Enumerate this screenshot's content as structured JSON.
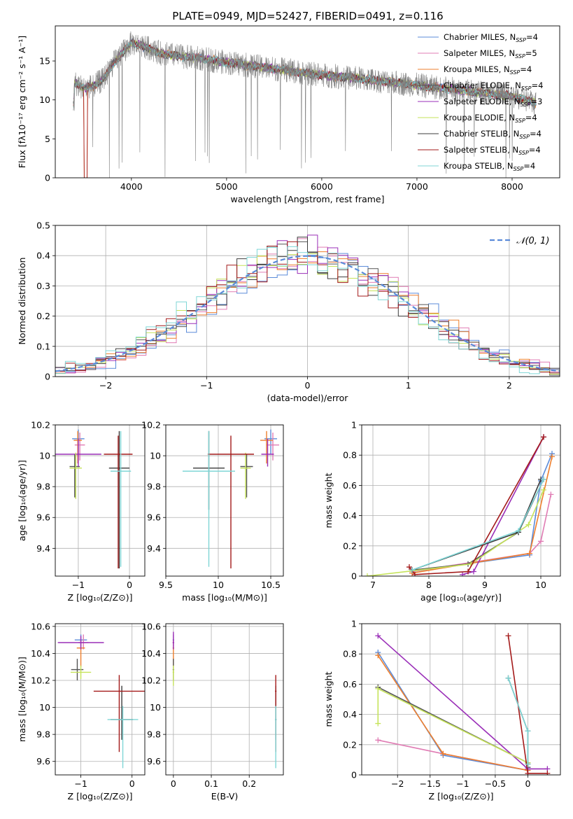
{
  "figure_title": "PLATE=0949, MJD=52427, FIBERID=0491, z=0.116",
  "colors": {
    "c1": "#5b8bd9",
    "c2": "#e07cb4",
    "c3": "#ee7f2d",
    "c4": "#555555",
    "c5": "#9a2fb8",
    "c6": "#c6e35a",
    "c7": "#3c3c3c",
    "c8": "#a31a1a",
    "c9": "#7fd6d6",
    "data": "#808080",
    "normal": "#5b8bd9",
    "grid": "#b0b0b0"
  },
  "legend": [
    {
      "label": "Chabrier MILES, N",
      "sub": "SSP",
      "suffix": "=4",
      "color": "#5b8bd9"
    },
    {
      "label": "Salpeter MILES, N",
      "sub": "SSP",
      "suffix": "=5",
      "color": "#e07cb4"
    },
    {
      "label": "Kroupa MILES, N",
      "sub": "SSP",
      "suffix": "=4",
      "color": "#ee7f2d"
    },
    {
      "label": "Chabrier ELODIE, N",
      "sub": "SSP",
      "suffix": "=4",
      "color": "#555555"
    },
    {
      "label": "Salpeter ELODIE, N",
      "sub": "SSP",
      "suffix": "=3",
      "color": "#9a2fb8"
    },
    {
      "label": "Kroupa ELODIE, N",
      "sub": "SSP",
      "suffix": "=4",
      "color": "#c6e35a"
    },
    {
      "label": "Chabrier STELIB, N",
      "sub": "SSP",
      "suffix": "=4",
      "color": "#3c3c3c"
    },
    {
      "label": "Salpeter STELIB, N",
      "sub": "SSP",
      "suffix": "=4",
      "color": "#a31a1a"
    },
    {
      "label": "Kroupa STELIB, N",
      "sub": "SSP",
      "suffix": "=4",
      "color": "#7fd6d6"
    }
  ],
  "chart_data": [
    {
      "id": "spectrum",
      "type": "line",
      "xlabel": "wavelength [Angstrom, rest frame]",
      "ylabel": "Flux [fλ10⁻¹⁷ erg cm⁻² s⁻¹ A⁻¹]",
      "xlim": [
        3200,
        8500
      ],
      "ylim": [
        0,
        19.5
      ],
      "xticks": [
        4000,
        5000,
        6000,
        7000,
        8000
      ],
      "yticks": [
        0,
        5,
        10,
        15
      ],
      "continuum": {
        "x": [
          3400,
          3500,
          3600,
          3700,
          3800,
          3900,
          4000,
          4100,
          4300,
          4500,
          4800,
          5000,
          5500,
          6000,
          6500,
          7000,
          7500,
          8000,
          8250
        ],
        "y": [
          12.2,
          11.5,
          11.8,
          12.6,
          14.5,
          16.0,
          17.3,
          17.0,
          16.0,
          15.6,
          15.2,
          14.8,
          14.0,
          13.2,
          12.6,
          11.9,
          11.2,
          10.5,
          9.6
        ]
      }
    },
    {
      "id": "residuals",
      "type": "step",
      "xlabel": "(data-model)/error",
      "ylabel": "Normed distribution",
      "xlim": [
        -2.5,
        2.5
      ],
      "ylim": [
        0,
        0.5
      ],
      "xticks": [
        -2,
        -1,
        0,
        1,
        2
      ],
      "yticks": [
        0.0,
        0.1,
        0.2,
        0.3,
        0.4,
        0.5
      ],
      "normal_label": "𝒩(0, 1)",
      "bin_width": 0.1
    },
    {
      "id": "age-vs-Z",
      "type": "errorbar",
      "xlabel": "Z [log₁₀(Z/Z⊙)]",
      "ylabel": "age  [log₁₀(age/yr)]",
      "xlim": [
        -1.45,
        0.3
      ],
      "ylim": [
        9.22,
        10.2
      ],
      "xticks": [
        -1,
        0
      ],
      "yticks": [
        9.4,
        9.6,
        9.8,
        10.0,
        10.2
      ],
      "points": [
        {
          "x": -1.0,
          "y": 10.11,
          "xerr": 0.12,
          "yerr": [
            0.1,
            0.06
          ],
          "color": "#5b8bd9"
        },
        {
          "x": -0.97,
          "y": 10.07,
          "xerr": 0.1,
          "yerr": [
            0.1,
            0.08
          ],
          "color": "#e07cb4"
        },
        {
          "x": -1.01,
          "y": 10.1,
          "xerr": 0.08,
          "yerr": [
            0.15,
            0.06
          ],
          "color": "#ee7f2d"
        },
        {
          "x": -1.07,
          "y": 9.93,
          "xerr": 0.1,
          "yerr": [
            0.2,
            0.08
          ],
          "color": "#555555"
        },
        {
          "x": -1.0,
          "y": 10.01,
          "xerr": 0.45,
          "yerr": [
            0.08,
            0.1
          ],
          "color": "#9a2fb8"
        },
        {
          "x": -1.05,
          "y": 9.92,
          "xerr": 0.12,
          "yerr": [
            0.2,
            0.1
          ],
          "color": "#c6e35a"
        },
        {
          "x": -0.2,
          "y": 9.92,
          "xerr": 0.2,
          "yerr": [
            0.65,
            0.24
          ],
          "color": "#3c3c3c"
        },
        {
          "x": -0.22,
          "y": 10.01,
          "xerr": 0.28,
          "yerr": [
            0.74,
            0.12
          ],
          "color": "#a31a1a"
        },
        {
          "x": -0.17,
          "y": 9.9,
          "xerr": 0.2,
          "yerr": [
            0.62,
            0.26
          ],
          "color": "#7fd6d6"
        }
      ]
    },
    {
      "id": "age-vs-mass",
      "type": "errorbar",
      "xlabel": "mass [log₁₀(M/M⊙)]",
      "ylabel": "",
      "xlim": [
        9.5,
        10.62
      ],
      "ylim": [
        9.22,
        10.2
      ],
      "xticks": [
        9.5,
        10.0,
        10.5
      ],
      "yticks": [
        9.4,
        9.6,
        9.8,
        10.0,
        10.2
      ],
      "points": [
        {
          "x": 10.5,
          "y": 10.11,
          "xerr": 0.06,
          "yerr": [
            0.1,
            0.06
          ],
          "color": "#5b8bd9"
        },
        {
          "x": 10.52,
          "y": 10.07,
          "xerr": 0.06,
          "yerr": [
            0.1,
            0.08
          ],
          "color": "#e07cb4"
        },
        {
          "x": 10.46,
          "y": 10.1,
          "xerr": 0.06,
          "yerr": [
            0.15,
            0.06
          ],
          "color": "#ee7f2d"
        },
        {
          "x": 10.27,
          "y": 9.93,
          "xerr": 0.06,
          "yerr": [
            0.2,
            0.08
          ],
          "color": "#555555"
        },
        {
          "x": 10.47,
          "y": 10.01,
          "xerr": 0.06,
          "yerr": [
            0.08,
            0.1
          ],
          "color": "#9a2fb8"
        },
        {
          "x": 10.26,
          "y": 9.92,
          "xerr": 0.05,
          "yerr": [
            0.2,
            0.1
          ],
          "color": "#c6e35a"
        },
        {
          "x": 9.91,
          "y": 9.92,
          "xerr": 0.15,
          "yerr": [
            0.27,
            0.24
          ],
          "color": "#3c3c3c"
        },
        {
          "x": 10.12,
          "y": 10.01,
          "xerr": 0.22,
          "yerr": [
            0.74,
            0.12
          ],
          "color": "#a31a1a"
        },
        {
          "x": 9.91,
          "y": 9.9,
          "xerr": 0.25,
          "yerr": [
            0.62,
            0.26
          ],
          "color": "#7fd6d6"
        }
      ]
    },
    {
      "id": "mass-weight-vs-age",
      "type": "line",
      "xlabel": "age  [log₁₀(age/yr)]",
      "ylabel": "mass weight",
      "xlim": [
        6.8,
        10.35
      ],
      "ylim": [
        0,
        1
      ],
      "xticks": [
        7,
        8,
        9,
        10
      ],
      "yticks": [
        0.0,
        0.2,
        0.4,
        0.6,
        0.8,
        1.0
      ],
      "series": [
        {
          "color": "#5b8bd9",
          "x": [
            7.7,
            9.8,
            10.0,
            10.2
          ],
          "y": [
            0.03,
            0.14,
            0.63,
            0.81
          ]
        },
        {
          "color": "#e07cb4",
          "x": [
            7.7,
            9.8,
            10.0,
            10.18
          ],
          "y": [
            0.03,
            0.15,
            0.23,
            0.54
          ]
        },
        {
          "color": "#ee7f2d",
          "x": [
            7.7,
            9.8,
            10.2
          ],
          "y": [
            0.02,
            0.15,
            0.79
          ]
        },
        {
          "color": "#555555",
          "x": [
            7.7,
            8.7,
            9.6,
            10.05
          ],
          "y": [
            0.04,
            0.08,
            0.29,
            0.64
          ]
        },
        {
          "color": "#9a2fb8",
          "x": [
            8.6,
            8.8,
            10.05
          ],
          "y": [
            0.01,
            0.03,
            0.92
          ]
        },
        {
          "color": "#c6e35a",
          "x": [
            6.9,
            8.75,
            9.78,
            10.05
          ],
          "y": [
            0.0,
            0.08,
            0.34,
            0.57
          ]
        },
        {
          "color": "#3c3c3c",
          "x": [
            7.7,
            9.6,
            10.0
          ],
          "y": [
            0.04,
            0.29,
            0.64
          ]
        },
        {
          "color": "#a31a1a",
          "x": [
            7.65,
            7.75,
            8.7,
            10.05
          ],
          "y": [
            0.06,
            0.01,
            0.03,
            0.92
          ]
        },
        {
          "color": "#7fd6d6",
          "x": [
            7.7,
            9.6,
            10.05
          ],
          "y": [
            0.04,
            0.3,
            0.64
          ]
        }
      ]
    },
    {
      "id": "mass-vs-Z",
      "type": "errorbar",
      "xlabel": "Z [log₁₀(Z/Z⊙)]",
      "ylabel": "mass [log₁₀(M/M⊙)]",
      "xlim": [
        -1.5,
        0.25
      ],
      "ylim": [
        9.5,
        10.62
      ],
      "xticks": [
        -1,
        0
      ],
      "yticks": [
        9.6,
        9.8,
        10.0,
        10.2,
        10.4,
        10.6
      ],
      "points": [
        {
          "x": -1.0,
          "y": 10.5,
          "xerr": 0.12,
          "yerr": [
            0.05,
            0.04
          ],
          "color": "#5b8bd9"
        },
        {
          "x": -0.95,
          "y": 10.48,
          "xerr": 0.1,
          "yerr": [
            0.05,
            0.06
          ],
          "color": "#e07cb4"
        },
        {
          "x": -1.0,
          "y": 10.44,
          "xerr": 0.08,
          "yerr": [
            0.14,
            0.06
          ],
          "color": "#ee7f2d"
        },
        {
          "x": -1.07,
          "y": 10.28,
          "xerr": 0.12,
          "yerr": [
            0.08,
            0.08
          ],
          "color": "#555555"
        },
        {
          "x": -1.0,
          "y": 10.48,
          "xerr": 0.45,
          "yerr": [
            0.05,
            0.05
          ],
          "color": "#9a2fb8"
        },
        {
          "x": -1.0,
          "y": 10.26,
          "xerr": 0.2,
          "yerr": [
            0.05,
            0.05
          ],
          "color": "#c6e35a"
        },
        {
          "x": -0.2,
          "y": 9.91,
          "xerr": 0.22,
          "yerr": [
            0.15,
            0.25
          ],
          "color": "#3c3c3c"
        },
        {
          "x": -0.25,
          "y": 10.12,
          "xerr": 0.5,
          "yerr": [
            0.45,
            0.12
          ],
          "color": "#a31a1a"
        },
        {
          "x": -0.18,
          "y": 9.91,
          "xerr": 0.3,
          "yerr": [
            0.36,
            0.1
          ],
          "color": "#7fd6d6"
        }
      ]
    },
    {
      "id": "mass-vs-ebv",
      "type": "errorbar",
      "xlabel": "E(B-V)",
      "ylabel": "",
      "xlim": [
        -0.02,
        0.29
      ],
      "ylim": [
        9.5,
        10.62
      ],
      "xticks": [
        0.0,
        0.1,
        0.2
      ],
      "yticks": [
        9.6,
        9.8,
        10.0,
        10.2,
        10.4,
        10.6
      ],
      "points": [
        {
          "x": 0.0,
          "y": 10.5,
          "xerr": 0.002,
          "yerr": [
            0.05,
            0.04
          ],
          "color": "#5b8bd9"
        },
        {
          "x": 0.0,
          "y": 10.48,
          "xerr": 0.002,
          "yerr": [
            0.05,
            0.06
          ],
          "color": "#e07cb4"
        },
        {
          "x": 0.0,
          "y": 10.44,
          "xerr": 0.002,
          "yerr": [
            0.14,
            0.06
          ],
          "color": "#ee7f2d"
        },
        {
          "x": 0.0,
          "y": 10.28,
          "xerr": 0.002,
          "yerr": [
            0.08,
            0.08
          ],
          "color": "#555555"
        },
        {
          "x": 0.0,
          "y": 10.48,
          "xerr": 0.002,
          "yerr": [
            0.05,
            0.08
          ],
          "color": "#9a2fb8"
        },
        {
          "x": 0.0,
          "y": 10.26,
          "xerr": 0.002,
          "yerr": [
            0.1,
            0.05
          ],
          "color": "#c6e35a"
        },
        {
          "x": 0.27,
          "y": 9.91,
          "xerr": 0.002,
          "yerr": [
            0.15,
            0.25
          ],
          "color": "#3c3c3c"
        },
        {
          "x": 0.27,
          "y": 10.12,
          "xerr": 0.002,
          "yerr": [
            0.45,
            0.12
          ],
          "color": "#a31a1a"
        },
        {
          "x": 0.27,
          "y": 9.91,
          "xerr": 0.002,
          "yerr": [
            0.36,
            0.1
          ],
          "color": "#7fd6d6"
        }
      ]
    },
    {
      "id": "mass-weight-vs-Z",
      "type": "line",
      "xlabel": "Z [log₁₀(Z/Z⊙)]",
      "ylabel": "mass weight",
      "xlim": [
        -2.55,
        0.5
      ],
      "ylim": [
        0,
        1
      ],
      "xticks": [
        -2.0,
        -1.5,
        -1.0,
        -0.5,
        0.0
      ],
      "yticks": [
        0.0,
        0.2,
        0.4,
        0.6,
        0.8,
        1.0
      ],
      "series": [
        {
          "color": "#5b8bd9",
          "x": [
            -2.3,
            -1.3,
            0.0
          ],
          "y": [
            0.81,
            0.13,
            0.03
          ]
        },
        {
          "color": "#e07cb4",
          "x": [
            -2.3,
            -1.3,
            0.0
          ],
          "y": [
            0.23,
            0.14,
            0.03
          ]
        },
        {
          "color": "#ee7f2d",
          "x": [
            -2.3,
            -1.3,
            0.0
          ],
          "y": [
            0.79,
            0.14,
            0.03
          ]
        },
        {
          "color": "#555555",
          "x": [
            -2.3,
            0.0,
            0.0
          ],
          "y": [
            0.58,
            0.08,
            0.05
          ]
        },
        {
          "color": "#9a2fb8",
          "x": [
            -2.3,
            0.0,
            0.3
          ],
          "y": [
            0.92,
            0.04,
            0.04
          ]
        },
        {
          "color": "#c6e35a",
          "x": [
            -2.3,
            -2.3,
            0.0
          ],
          "y": [
            0.34,
            0.57,
            0.08
          ]
        },
        {
          "color": "#3c3c3c",
          "x": [
            -0.3,
            0.0,
            0.0
          ],
          "y": [
            0.64,
            0.29,
            0.07
          ]
        },
        {
          "color": "#a31a1a",
          "x": [
            -0.3,
            0.0,
            0.3
          ],
          "y": [
            0.92,
            0.01,
            0.01
          ]
        },
        {
          "color": "#7fd6d6",
          "x": [
            -0.3,
            0.0,
            0.0
          ],
          "y": [
            0.64,
            0.29,
            0.07
          ]
        }
      ]
    }
  ]
}
